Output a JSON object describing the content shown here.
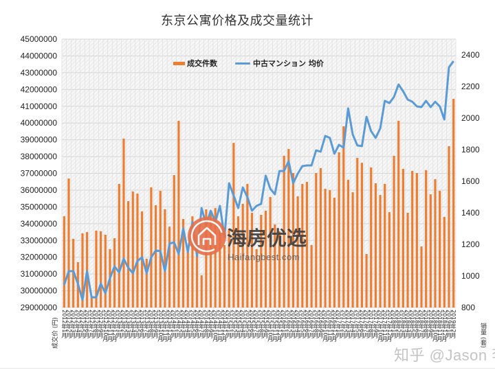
{
  "chart_data": {
    "type": "bar",
    "combo": "bar+line (dual axis)",
    "title": "东京公寓价格及成交量统计",
    "xlabel": "",
    "ylabel_left": "成交价 (円)",
    "ylabel_right": "销量 (套)",
    "ylim_left": [
      29000000,
      45000000
    ],
    "ylim_right": [
      800,
      2500
    ],
    "yticks_left": [
      45000000,
      44000000,
      43000000,
      42000000,
      41000000,
      40000000,
      39000000,
      38000000,
      37000000,
      36000000,
      35000000,
      34000000,
      33000000,
      32000000,
      31000000,
      30000000,
      29000000
    ],
    "yticks_right": [
      2400,
      2200,
      2000,
      1800,
      1600,
      1400,
      1200,
      1000,
      800
    ],
    "grid": true,
    "legend_position": "top",
    "categories": [
      "2012年1月",
      "2012年2月",
      "2012年3月",
      "2012年4月",
      "2012年5月",
      "2012年6月",
      "2012年7月",
      "2012年8月",
      "2012年9月",
      "2012年10月",
      "2012年11月",
      "2012年12月",
      "2013年1月",
      "2013年2月",
      "2013年3月",
      "2013年4月",
      "2013年5月",
      "2013年6月",
      "2013年7月",
      "2013年8月",
      "2013年9月",
      "2013年10月",
      "2013年11月",
      "2013年12月",
      "2014年1月",
      "2014年2月",
      "2014年3月",
      "2014年4月",
      "2014年5月",
      "2014年6月",
      "2014年7月",
      "2014年8月",
      "2014年9月",
      "2014年10月",
      "2014年11月",
      "2014年12月",
      "2015年1月",
      "2015年2月",
      "2015年3月",
      "2015年4月",
      "2015年5月",
      "2015年6月",
      "2015年7月",
      "2015年8月",
      "2015年9月",
      "2015年10月",
      "2015年11月",
      "2015年12月",
      "2016年1月",
      "2016年2月",
      "2016年3月",
      "2016年4月",
      "2016年5月",
      "2016年6月",
      "2016年7月",
      "2016年8月",
      "2016年9月",
      "2016年10月",
      "2016年11月",
      "2016年12月",
      "2017年1月",
      "2017年2月",
      "2017年3月",
      "2017年4月",
      "2017年5月",
      "2017年6月",
      "2017年7月",
      "2017年8月",
      "2017年9月",
      "2017年10月",
      "2017年11月",
      "2017年12月",
      "2018年1月",
      "2018年2月",
      "2018年3月",
      "2018年4月",
      "2018年5月",
      "2018年6月",
      "2018年7月",
      "2018年8月",
      "2018年9月",
      "2018年10月",
      "2018年11月",
      "2018年12月",
      "2019年1月",
      "2019年2月"
    ],
    "series": [
      {
        "name": "成交件数",
        "type": "bar",
        "axis": "right",
        "color": "#ED7D31",
        "values": [
          1378,
          1617,
          1235,
          1087,
          1270,
          1278,
          870,
          1287,
          1283,
          1261,
          1170,
          1239,
          1583,
          1870,
          1474,
          1535,
          1522,
          1409,
          1109,
          1561,
          1448,
          1539,
          1422,
          1313,
          1639,
          1983,
          1361,
          1183,
          1378,
          1257,
          1004,
          1422,
          1413,
          1430,
          1300,
          1196,
          1300,
          1843,
          1378,
          1457,
          1583,
          1400,
          1170,
          1387,
          1413,
          1500,
          1326,
          1283,
          1761,
          1804,
          1652,
          1504,
          1583,
          1596,
          1196,
          1652,
          1683,
          1552,
          1543,
          1496,
          1783,
          1948,
          1609,
          1530,
          1748,
          1717,
          1139,
          1687,
          1587,
          1513,
          1583,
          1404,
          1761,
          1983,
          1678,
          1400,
          1665,
          1652,
          1187,
          1670,
          1517,
          1613,
          1539,
          1374,
          1822,
          2122
        ]
      },
      {
        "name": "中古マンション 均价",
        "type": "line",
        "axis": "left",
        "color": "#5B9BD5",
        "values": [
          30350000,
          31170000,
          31170000,
          30430000,
          29450000,
          31170000,
          29610000,
          29610000,
          30430000,
          29860000,
          30760000,
          31450000,
          31090000,
          31910000,
          31370000,
          31050000,
          31780000,
          31990000,
          31050000,
          31990000,
          32400000,
          32360000,
          31170000,
          32810000,
          32890000,
          32190000,
          33710000,
          32310000,
          34110000,
          32070000,
          34930000,
          33950000,
          34770000,
          34110000,
          35060000,
          33210000,
          36410000,
          35670000,
          34930000,
          36160000,
          35590000,
          34770000,
          35060000,
          35180000,
          36860000,
          36080000,
          35750000,
          37140000,
          37140000,
          37720000,
          36410000,
          36980000,
          37430000,
          37470000,
          37470000,
          38370000,
          38290000,
          39230000,
          39110000,
          38170000,
          38700000,
          38530000,
          40870000,
          39310000,
          38660000,
          38620000,
          40370000,
          39520000,
          39110000,
          39680000,
          41320000,
          41190000,
          41560000,
          42300000,
          41890000,
          41400000,
          41270000,
          40990000,
          40950000,
          41320000,
          40950000,
          41270000,
          40990000,
          40210000,
          43320000,
          43690000
        ]
      }
    ]
  },
  "watermarks": {
    "logo_text": "海房优选",
    "logo_subtext": "Haifangbest.com",
    "credit": "知乎 @Jason 李"
  }
}
